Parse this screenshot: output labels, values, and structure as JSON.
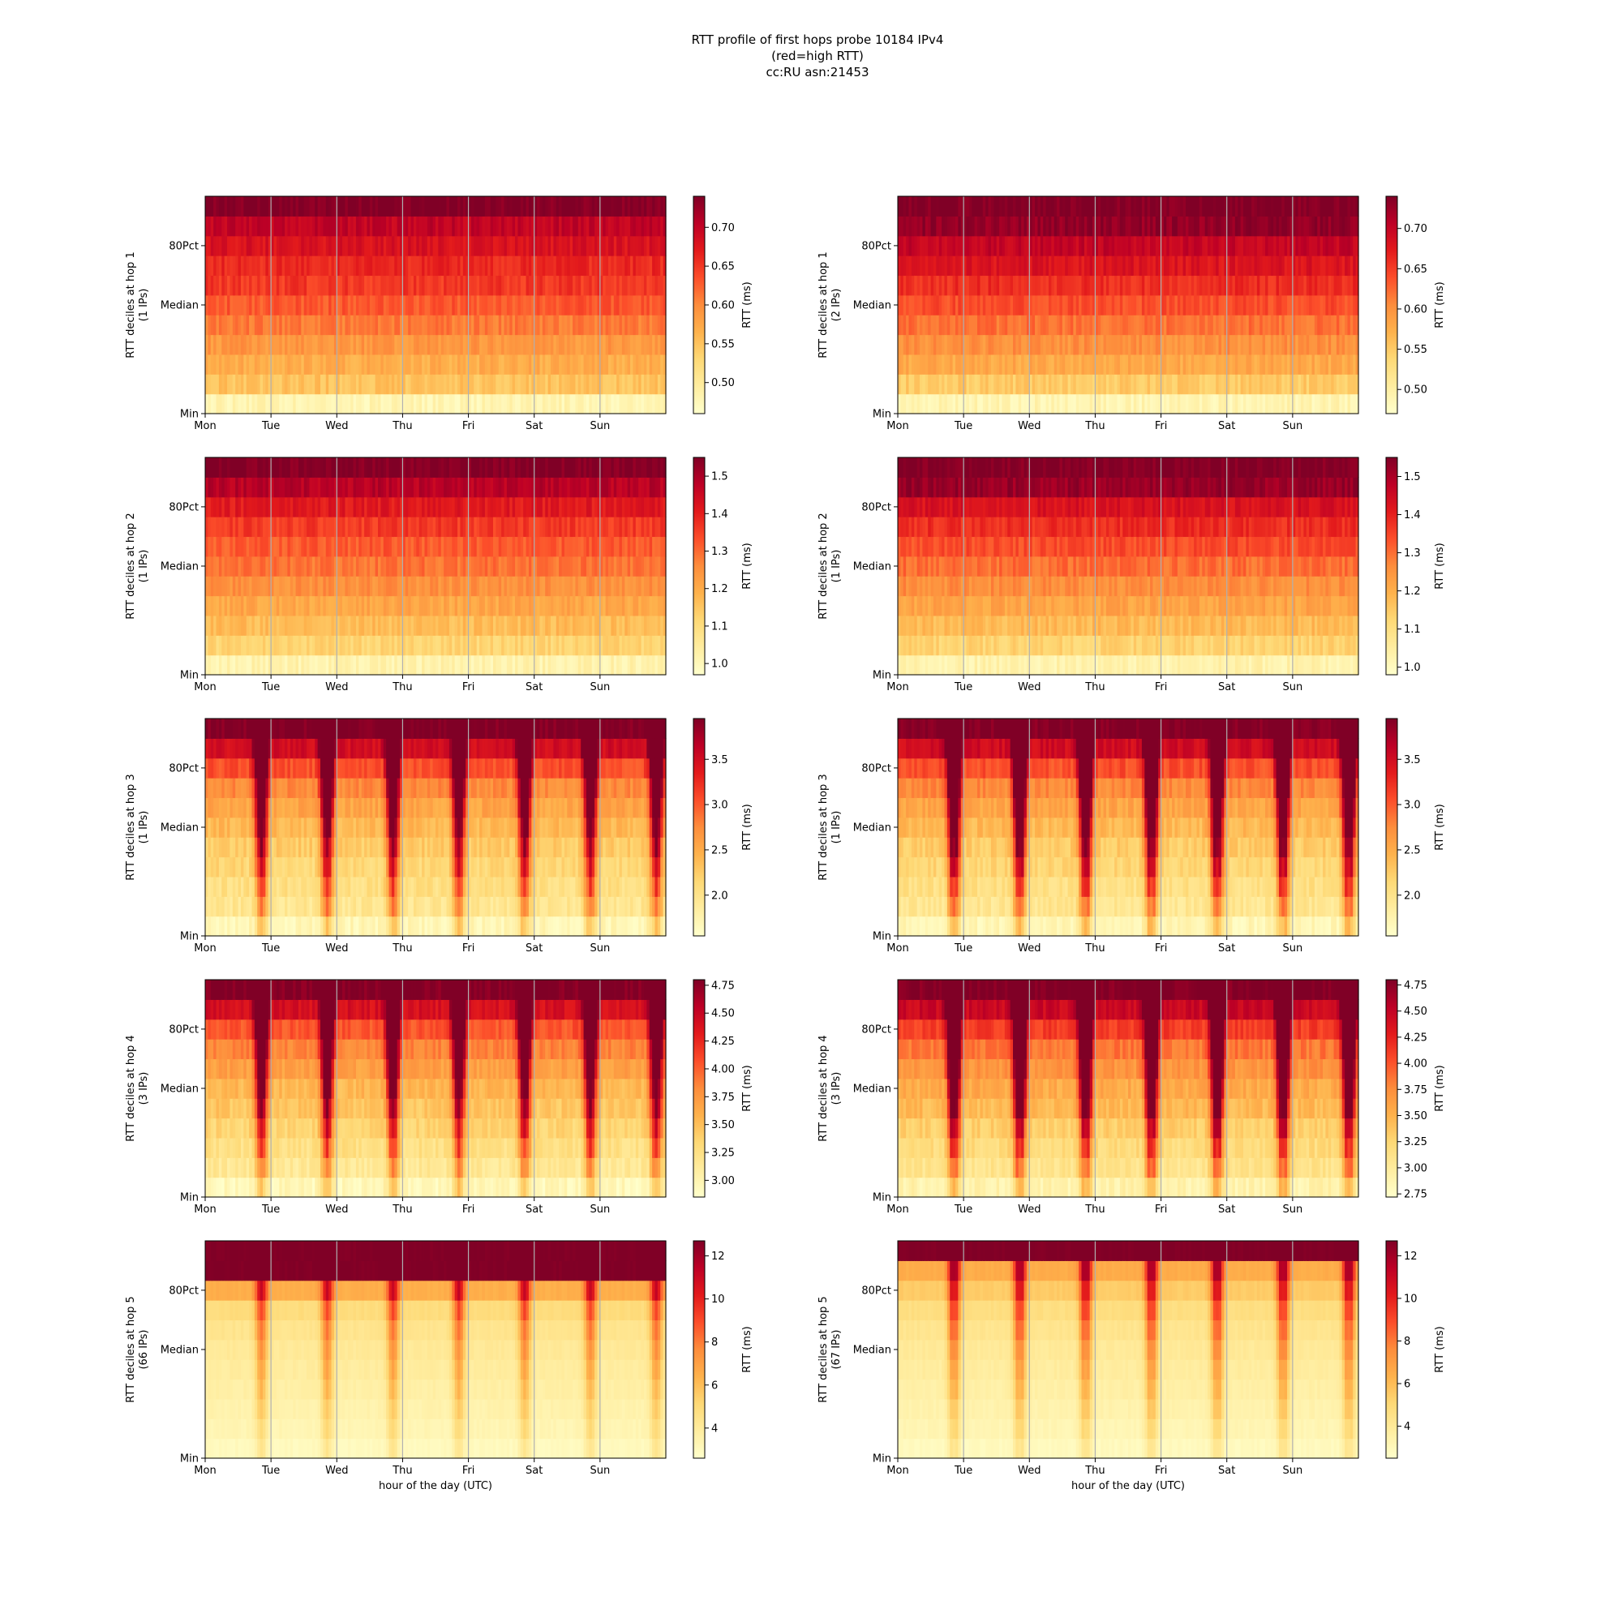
{
  "figure": {
    "title_lines": [
      "RTT profile of first hops probe 10184 IPv4",
      "(red=high RTT)",
      "cc:RU asn:21453"
    ]
  },
  "shared": {
    "xticks": [
      "Mon",
      "Tue",
      "Wed",
      "Thu",
      "Fri",
      "Sat",
      "Sun"
    ],
    "yticks": [
      "Min",
      "Median",
      "80Pct"
    ],
    "colorbar_label": "RTT (ms)",
    "xlabel": "hour of the day (UTC)",
    "colormap": [
      "#ffffcc",
      "#ffeda0",
      "#fed976",
      "#feb24c",
      "#fd8d3c",
      "#fc4e2a",
      "#e31a1c",
      "#bd0026",
      "#800026"
    ],
    "grid_color": "#b0b0b0"
  },
  "chart_data": [
    {
      "type": "heatmap",
      "hop": 1,
      "column": "left",
      "ylabel": "RTT deciles at hop 1",
      "ips": "(1 IPs)",
      "cbar_ticks": [
        "0.50",
        "0.55",
        "0.60",
        "0.65",
        "0.70"
      ],
      "cbar_tick_values": [
        0.5,
        0.55,
        0.6,
        0.65,
        0.7
      ],
      "cbar_range": [
        0.46,
        0.74
      ],
      "pattern": "flat",
      "decile_values": [
        0.48,
        0.55,
        0.57,
        0.59,
        0.61,
        0.63,
        0.65,
        0.66,
        0.68,
        0.7,
        0.74
      ]
    },
    {
      "type": "heatmap",
      "hop": 1,
      "column": "right",
      "ylabel": "RTT deciles at hop 1",
      "ips": "(2 IPs)",
      "cbar_ticks": [
        "0.50",
        "0.55",
        "0.60",
        "0.65",
        "0.70"
      ],
      "cbar_tick_values": [
        0.5,
        0.55,
        0.6,
        0.65,
        0.7
      ],
      "cbar_range": [
        0.47,
        0.74
      ],
      "pattern": "flat",
      "decile_values": [
        0.49,
        0.55,
        0.58,
        0.6,
        0.62,
        0.64,
        0.66,
        0.68,
        0.7,
        0.73,
        0.74
      ]
    },
    {
      "type": "heatmap",
      "hop": 2,
      "column": "left",
      "ylabel": "RTT deciles at hop 2",
      "ips": "(1 IPs)",
      "cbar_ticks": [
        "1.0",
        "1.1",
        "1.2",
        "1.3",
        "1.4",
        "1.5"
      ],
      "cbar_tick_values": [
        1.0,
        1.1,
        1.2,
        1.3,
        1.4,
        1.5
      ],
      "cbar_range": [
        0.97,
        1.55
      ],
      "pattern": "flat",
      "decile_values": [
        1.02,
        1.12,
        1.17,
        1.21,
        1.25,
        1.29,
        1.32,
        1.36,
        1.41,
        1.48,
        1.55
      ]
    },
    {
      "type": "heatmap",
      "hop": 2,
      "column": "right",
      "ylabel": "RTT deciles at hop 2",
      "ips": "(1 IPs)",
      "cbar_ticks": [
        "1.0",
        "1.1",
        "1.2",
        "1.3",
        "1.4",
        "1.5"
      ],
      "cbar_tick_values": [
        1.0,
        1.1,
        1.2,
        1.3,
        1.4,
        1.5
      ],
      "cbar_range": [
        0.98,
        1.55
      ],
      "pattern": "flat",
      "decile_values": [
        1.03,
        1.13,
        1.18,
        1.22,
        1.26,
        1.3,
        1.34,
        1.38,
        1.43,
        1.52,
        1.55
      ]
    },
    {
      "type": "heatmap",
      "hop": 3,
      "column": "left",
      "ylabel": "RTT deciles at hop 3",
      "ips": "(1 IPs)",
      "cbar_ticks": [
        "2.0",
        "2.5",
        "3.0",
        "3.5"
      ],
      "cbar_tick_values": [
        2.0,
        2.5,
        3.0,
        3.5
      ],
      "cbar_range": [
        1.55,
        3.95
      ],
      "pattern": "daily",
      "decile_values": [
        1.7,
        1.95,
        2.05,
        2.15,
        2.25,
        2.4,
        2.55,
        2.75,
        3.05,
        3.5,
        3.95
      ]
    },
    {
      "type": "heatmap",
      "hop": 3,
      "column": "right",
      "ylabel": "RTT deciles at hop 3",
      "ips": "(1 IPs)",
      "cbar_ticks": [
        "2.0",
        "2.5",
        "3.0",
        "3.5"
      ],
      "cbar_tick_values": [
        2.0,
        2.5,
        3.0,
        3.5
      ],
      "cbar_range": [
        1.55,
        3.95
      ],
      "pattern": "daily",
      "decile_values": [
        1.7,
        1.95,
        2.05,
        2.15,
        2.25,
        2.4,
        2.55,
        2.75,
        3.05,
        3.5,
        3.95
      ]
    },
    {
      "type": "heatmap",
      "hop": 4,
      "column": "left",
      "ylabel": "RTT deciles at hop 4",
      "ips": "(3 IPs)",
      "cbar_ticks": [
        "3.00",
        "3.25",
        "3.50",
        "3.75",
        "4.00",
        "4.25",
        "4.50",
        "4.75"
      ],
      "cbar_tick_values": [
        3.0,
        3.25,
        3.5,
        3.75,
        4.0,
        4.25,
        4.5,
        4.75
      ],
      "cbar_range": [
        2.85,
        4.8
      ],
      "pattern": "daily",
      "decile_values": [
        2.95,
        3.15,
        3.25,
        3.35,
        3.45,
        3.55,
        3.7,
        3.85,
        4.05,
        4.4,
        4.8
      ]
    },
    {
      "type": "heatmap",
      "hop": 4,
      "column": "right",
      "ylabel": "RTT deciles at hop 4",
      "ips": "(3 IPs)",
      "cbar_ticks": [
        "2.75",
        "3.00",
        "3.25",
        "3.50",
        "3.75",
        "4.00",
        "4.25",
        "4.50",
        "4.75"
      ],
      "cbar_tick_values": [
        2.75,
        3.0,
        3.25,
        3.5,
        3.75,
        4.0,
        4.25,
        4.5,
        4.75
      ],
      "cbar_range": [
        2.72,
        4.8
      ],
      "pattern": "daily",
      "decile_values": [
        2.9,
        3.1,
        3.2,
        3.3,
        3.45,
        3.55,
        3.7,
        3.85,
        4.1,
        4.45,
        4.8
      ]
    },
    {
      "type": "heatmap",
      "hop": 5,
      "column": "left",
      "ylabel": "RTT deciles at hop 5",
      "ips": "(66 IPs)",
      "cbar_ticks": [
        "4",
        "6",
        "8",
        "10",
        "12"
      ],
      "cbar_tick_values": [
        4,
        6,
        8,
        10,
        12
      ],
      "cbar_range": [
        2.6,
        12.7
      ],
      "pattern": "daily-top",
      "decile_values": [
        3.0,
        3.3,
        3.5,
        3.7,
        3.9,
        4.1,
        4.4,
        4.9,
        6.5,
        12.7,
        12.7
      ]
    },
    {
      "type": "heatmap",
      "hop": 5,
      "column": "right",
      "ylabel": "RTT deciles at hop 5",
      "ips": "(67 IPs)",
      "cbar_ticks": [
        "4",
        "6",
        "8",
        "10",
        "12"
      ],
      "cbar_tick_values": [
        4,
        6,
        8,
        10,
        12
      ],
      "cbar_range": [
        2.5,
        12.7
      ],
      "pattern": "daily-top",
      "decile_values": [
        2.9,
        3.2,
        3.4,
        3.6,
        3.8,
        4.0,
        4.3,
        4.7,
        5.5,
        6.5,
        12.7
      ]
    }
  ]
}
